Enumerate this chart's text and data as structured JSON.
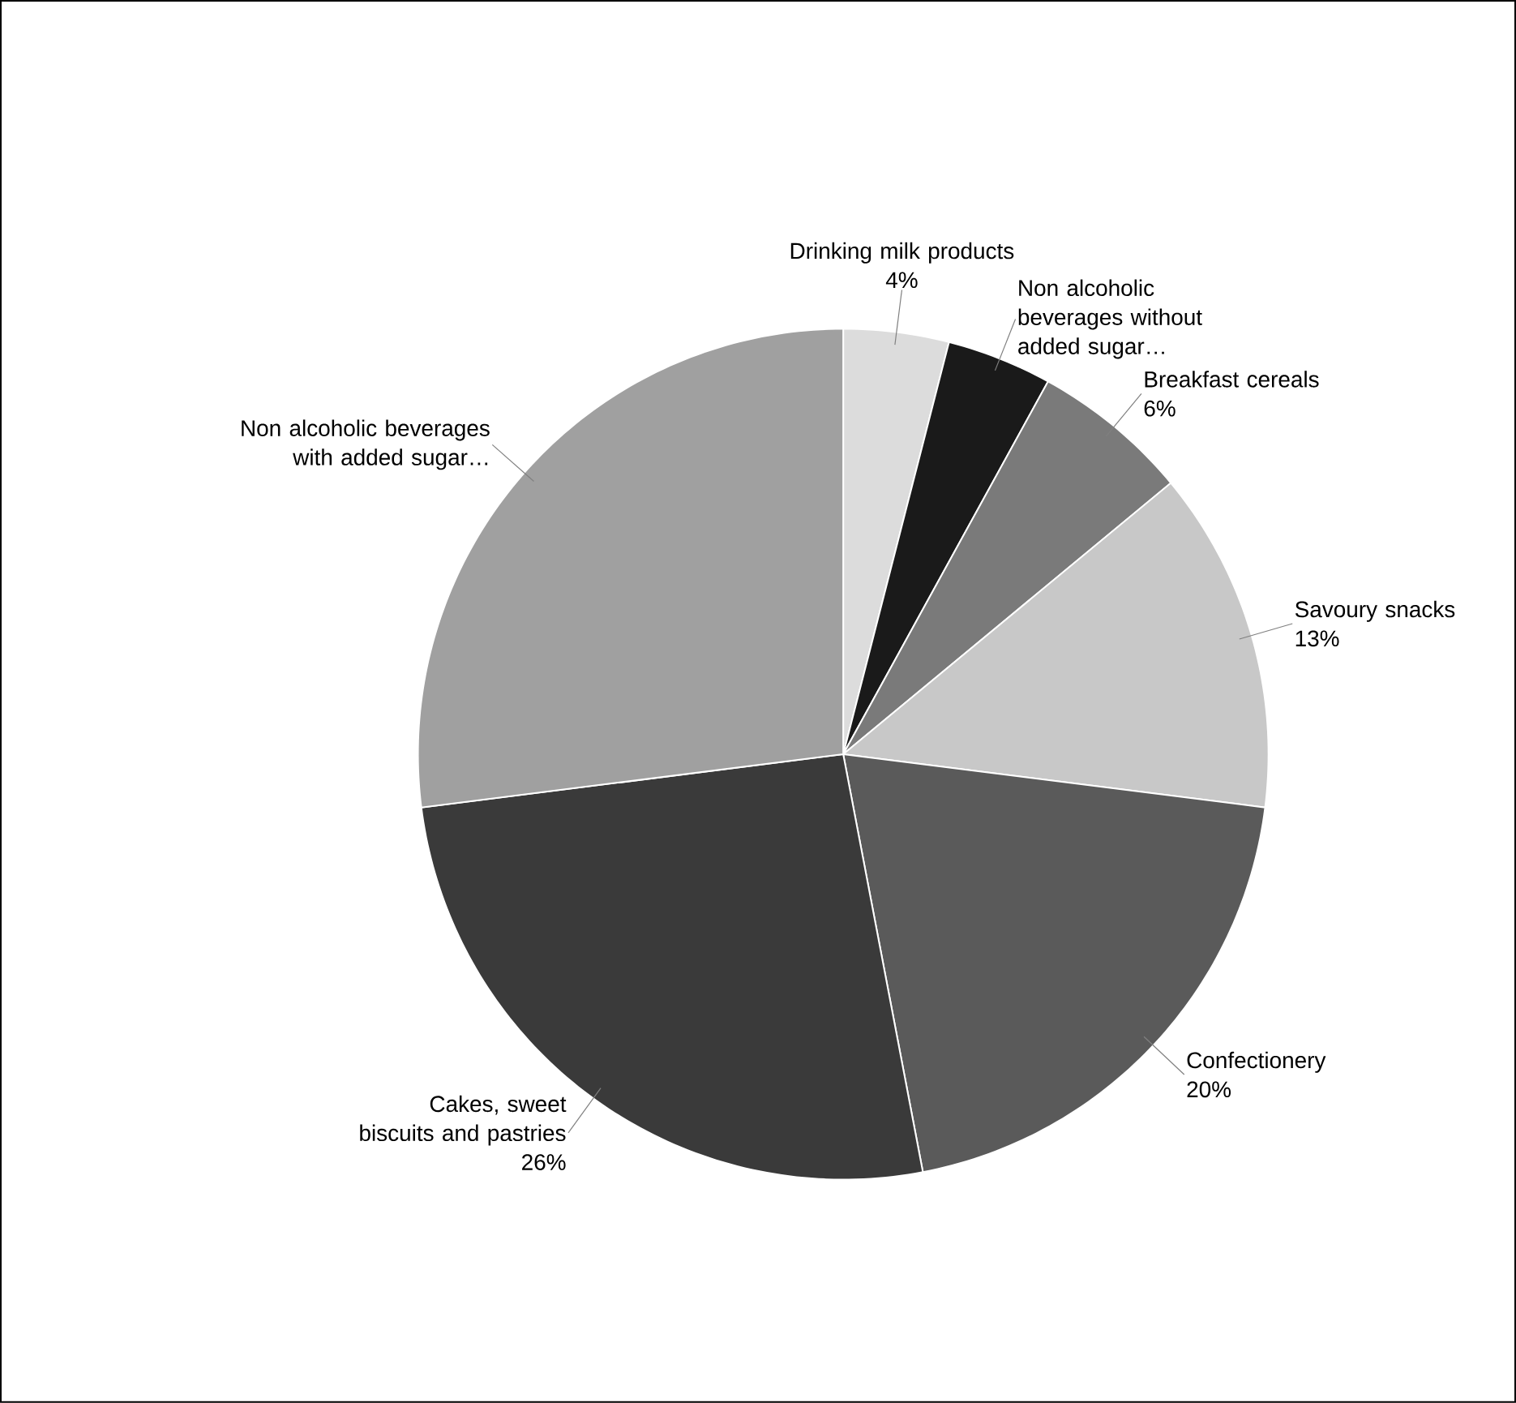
{
  "chart_data": {
    "type": "pie",
    "categories": [
      "Drinking milk products",
      "Non alcoholic beverages without added sugar…",
      "Breakfast cereals",
      "Savoury snacks",
      "Confectionery",
      "Cakes, sweet biscuits and pastries",
      "Non alcoholic beverages with added sugar…"
    ],
    "values": [
      4,
      4,
      6,
      13,
      20,
      26,
      27
    ],
    "value_labels": [
      "4%",
      null,
      "6%",
      "13%",
      "20%",
      "26%",
      null
    ],
    "colors": [
      "#dcdcdc",
      "#1a1a1a",
      "#7a7a7a",
      "#c8c8c8",
      "#5a5a5a",
      "#3a3a3a",
      "#a0a0a0"
    ]
  }
}
